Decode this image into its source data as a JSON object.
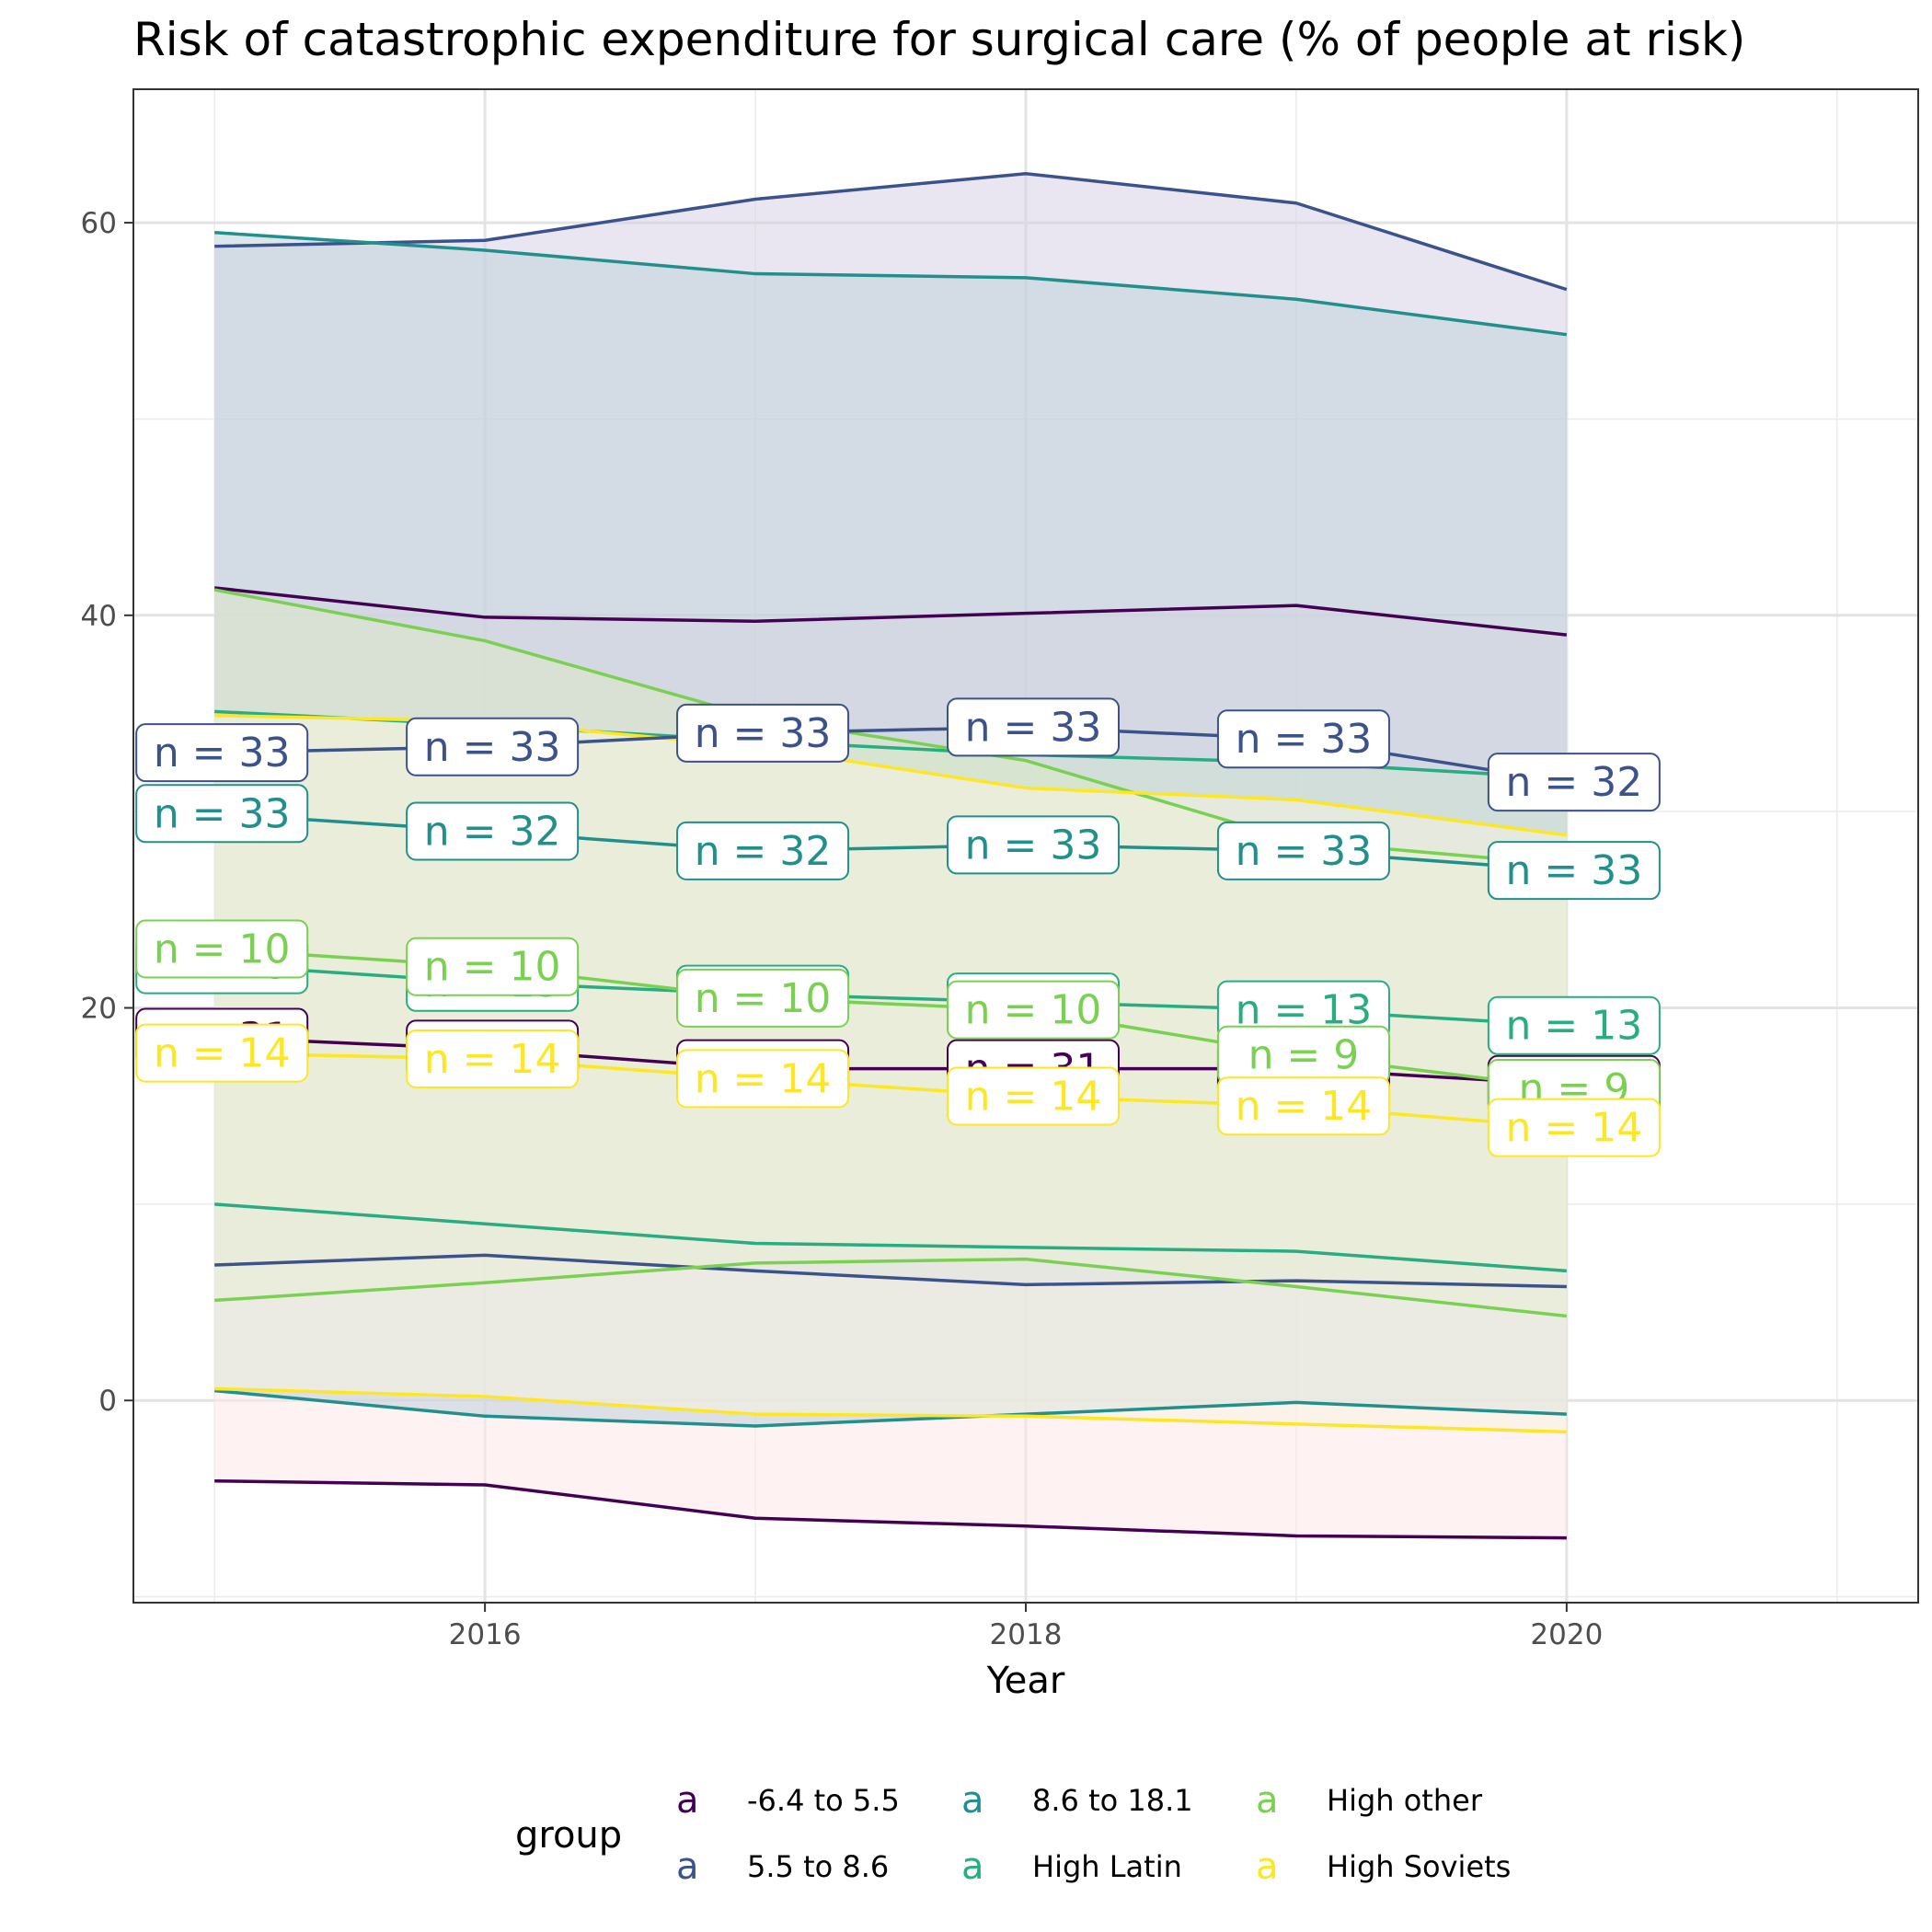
{
  "chart_data": {
    "type": "area",
    "title": "Risk of catastrophic expenditure for surgical care (% of people at risk)",
    "xlabel": "Year",
    "ylabel": "",
    "xlim": [
      2014.7,
      2021.3
    ],
    "ylim": [
      -10.3,
      66.8
    ],
    "x_ticks": [
      2016,
      2018,
      2020
    ],
    "y_ticks": [
      0,
      20,
      40,
      60
    ],
    "grid": true,
    "legend": {
      "title": "group",
      "position": "bottom",
      "key_glyph": "a",
      "items": [
        "-6.4 to 5.5",
        "5.5 to 8.6",
        "8.6 to 18.1",
        "High Latin",
        "High other",
        "High Soviets"
      ]
    },
    "x": [
      2015,
      2016,
      2017,
      2018,
      2019,
      2020
    ],
    "series": [
      {
        "name": "-6.4 to 5.5",
        "color": "#440154",
        "band_fill": "#fde7e9",
        "mean": [
          18.5,
          17.9,
          16.9,
          16.9,
          16.9,
          16.1
        ],
        "upper": [
          41.4,
          39.9,
          39.7,
          40.1,
          40.5,
          39.0
        ],
        "lower": [
          -4.1,
          -4.3,
          -6.0,
          -6.4,
          -6.9,
          -7.0
        ],
        "n_labels": [
          "n = 31",
          "n = 31",
          "n = 31",
          "n = 31",
          "n = 31",
          "n = 31"
        ]
      },
      {
        "name": "5.5 to 8.6",
        "color": "#3b528b",
        "band_fill": "#d8d2e6",
        "mean": [
          33.0,
          33.3,
          34.0,
          34.3,
          33.7,
          31.5
        ],
        "upper": [
          58.8,
          59.1,
          61.2,
          62.5,
          61.0,
          56.6
        ],
        "lower": [
          6.9,
          7.4,
          6.6,
          5.9,
          6.1,
          5.8
        ],
        "n_labels": [
          "n = 33",
          "n = 33",
          "n = 33",
          "n = 33",
          "n = 33",
          "n = 32"
        ]
      },
      {
        "name": "8.6 to 18.1",
        "color": "#21908d",
        "band_fill": "#bfd1da",
        "mean": [
          29.9,
          29.0,
          28.0,
          28.3,
          28.0,
          27.0
        ],
        "upper": [
          59.5,
          58.6,
          57.4,
          57.2,
          56.1,
          54.3
        ],
        "lower": [
          0.5,
          -0.8,
          -1.3,
          -0.7,
          -0.1,
          -0.7
        ],
        "n_labels": [
          "n = 33",
          "n = 32",
          "n = 32",
          "n = 33",
          "n = 33",
          "n = 33"
        ]
      },
      {
        "name": "High Latin",
        "color": "#27ad81",
        "band_fill": "#cfe3d2",
        "mean": [
          35.1,
          34.4,
          33.6,
          32.9,
          32.5,
          31.7
        ],
        "upper": [
          35.1,
          34.4,
          33.6,
          32.9,
          32.5,
          31.7
        ],
        "lower": [
          10.0,
          9.0,
          8.0,
          7.8,
          7.6,
          6.6
        ],
        "n_labels": [
          "n = 13",
          "n = 13",
          "n = 13",
          "n = 13",
          "n = 13",
          "n = 13"
        ]
      },
      {
        "name": "High other",
        "color": "#7ad151",
        "band_fill": "#dde9c6",
        "mean": [
          41.3,
          38.7,
          34.8,
          32.6,
          28.5,
          27.3
        ],
        "upper": [
          41.3,
          38.7,
          34.8,
          32.6,
          28.5,
          27.3
        ],
        "lower": [
          5.1,
          6.0,
          7.0,
          7.2,
          5.8,
          4.3
        ],
        "n_labels": [
          "n = 10",
          "n = 10",
          "n = 10",
          "n = 10",
          "n = 9",
          "n = 9"
        ]
      },
      {
        "name": "High Soviets",
        "color": "#fde725",
        "band_fill": "#f7f4e2",
        "mean": [
          34.9,
          34.6,
          33.3,
          31.2,
          30.6,
          28.8
        ],
        "upper": [
          34.9,
          34.6,
          33.3,
          31.2,
          30.6,
          28.8
        ],
        "lower": [
          0.6,
          0.2,
          -0.7,
          -0.8,
          -1.2,
          -1.6
        ],
        "n_labels": [
          "n = 14",
          "n = 14",
          "n = 14",
          "n = 14",
          "n = 14",
          "n = 14"
        ]
      }
    ],
    "label_lines": [
      {
        "series": "-6.4 to 5.5",
        "y": [
          18.5,
          17.9,
          16.9,
          16.9,
          16.9,
          16.1
        ]
      },
      {
        "series": "5.5 to 8.6",
        "y": [
          33.0,
          33.3,
          34.0,
          34.3,
          33.7,
          31.5
        ]
      },
      {
        "series": "8.6 to 18.1",
        "y": [
          29.9,
          29.0,
          28.0,
          28.3,
          28.0,
          27.0
        ]
      },
      {
        "series": "High Latin",
        "y": [
          22.2,
          21.3,
          20.7,
          20.3,
          19.9,
          19.1
        ]
      },
      {
        "series": "High other",
        "y": [
          23.0,
          22.1,
          20.5,
          19.9,
          17.6,
          15.9
        ]
      },
      {
        "series": "High Soviets",
        "y": [
          17.7,
          17.4,
          16.4,
          15.5,
          15.0,
          13.9
        ]
      }
    ]
  }
}
